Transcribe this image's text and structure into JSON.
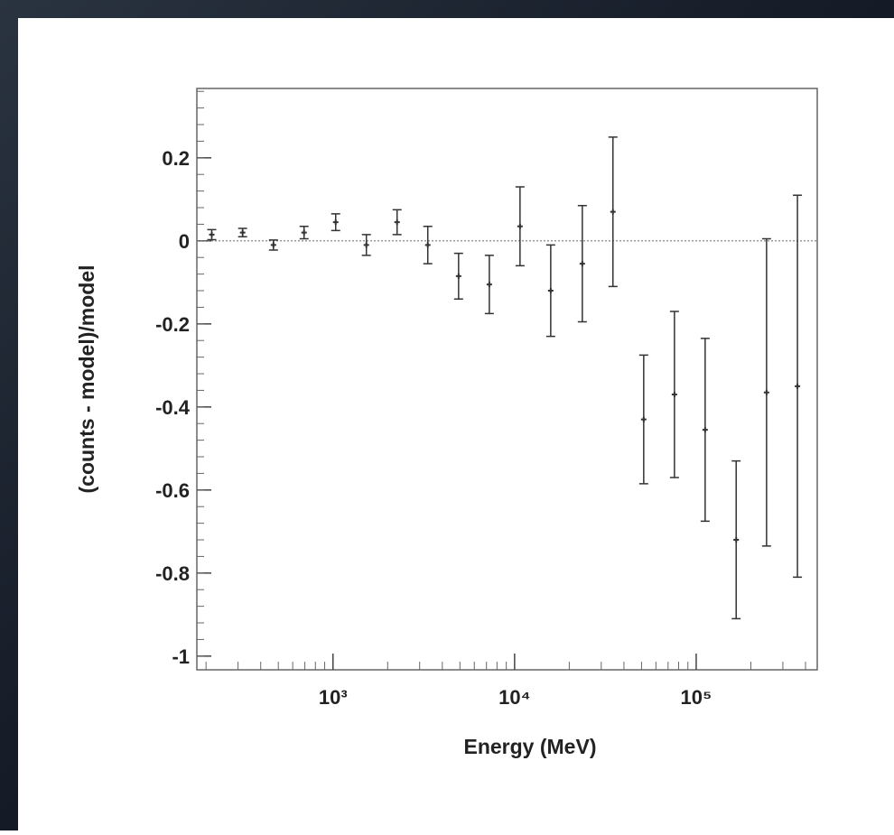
{
  "chart_data": {
    "type": "errorbar",
    "x_label": "Energy (MeV)",
    "y_label": "(counts - model)/model",
    "x": [
      215,
      318,
      470,
      693,
      1035,
      1527,
      2254,
      3327,
      4916,
      7259,
      10712,
      15810,
      23600,
      34800,
      51400,
      75900,
      112000,
      166000,
      244000,
      361000
    ],
    "values": [
      0.015,
      0.02,
      -0.01,
      0.02,
      0.045,
      -0.01,
      0.045,
      -0.01,
      -0.085,
      -0.105,
      0.035,
      -0.12,
      -0.055,
      0.07,
      -0.43,
      -0.37,
      -0.455,
      -0.72,
      -0.365,
      -0.35
    ],
    "errors": [
      0.012,
      0.01,
      0.012,
      0.015,
      0.02,
      0.025,
      0.03,
      0.045,
      0.055,
      0.07,
      0.095,
      0.11,
      0.14,
      0.18,
      0.155,
      0.2,
      0.22,
      0.19,
      0.37,
      0.46
    ],
    "color": "#333333",
    "xlog": true,
    "xlim": [
      178,
      464000
    ],
    "ylim": [
      -1.033,
      0.367
    ],
    "xticks": [
      {
        "value": 1000,
        "label": "10³"
      },
      {
        "value": 10000,
        "label": "10⁴"
      },
      {
        "value": 100000,
        "label": "10⁵"
      }
    ],
    "yticks": [
      -1,
      -0.8,
      -0.6,
      -0.4,
      -0.2,
      0,
      0.2
    ],
    "reference_line": 0
  }
}
